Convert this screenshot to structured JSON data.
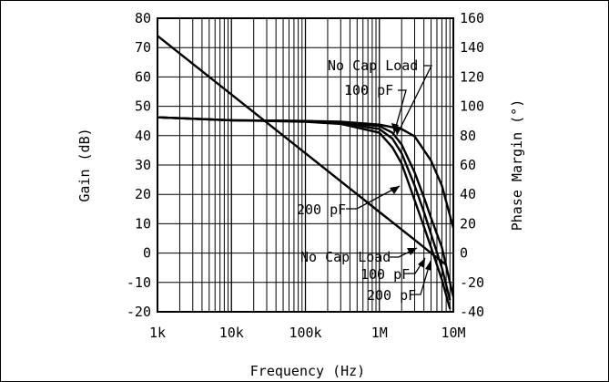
{
  "chart_data": {
    "type": "line",
    "title": "",
    "xlabel": "Frequency (Hz)",
    "ylabel": "Gain (dB)",
    "y2label": "Phase Margin (°)",
    "xscale": "log",
    "xlim": [
      1000,
      10000000
    ],
    "ylim": [
      -20,
      80
    ],
    "y2lim": [
      -40,
      160
    ],
    "grid": true,
    "x_ticks": [
      {
        "value": 1000,
        "label": "1k"
      },
      {
        "value": 10000,
        "label": "10k"
      },
      {
        "value": 100000,
        "label": "100k"
      },
      {
        "value": 1000000,
        "label": "1M"
      },
      {
        "value": 10000000,
        "label": "10M"
      }
    ],
    "y_ticks": [
      "80",
      "70",
      "60",
      "50",
      "40",
      "30",
      "20",
      "10",
      "0",
      "-10",
      "-20"
    ],
    "y2_ticks": [
      "160",
      "140",
      "120",
      "100",
      "80",
      "60",
      "40",
      "20",
      "0",
      "-20",
      "-40"
    ],
    "series": [
      {
        "axis": "left",
        "style": "gain",
        "x": [
          1000,
          10000,
          100000,
          1000000,
          3000000,
          5000000,
          8000000
        ],
        "y": [
          74,
          54,
          34,
          14,
          4.5,
          0,
          -4
        ]
      },
      {
        "axis": "right",
        "style": "phase",
        "x": [
          1000,
          10000,
          100000,
          300000,
          1000000,
          2000000,
          3000000,
          5000000,
          7000000,
          10000000
        ],
        "y": [
          92.5,
          90.5,
          90,
          89.5,
          87.5,
          84.5,
          79.5,
          63,
          46,
          17
        ]
      },
      {
        "axis": "right",
        "style": "phase",
        "x": [
          1000,
          10000,
          100000,
          300000,
          1000000,
          1500000,
          2000000,
          3000000,
          4000000,
          5000000,
          7000000,
          10000000
        ],
        "y": [
          92.5,
          90.5,
          90,
          89,
          86.5,
          82,
          74,
          55,
          38,
          24,
          4,
          -30
        ]
      },
      {
        "axis": "right",
        "style": "phase",
        "x": [
          1000,
          10000,
          100000,
          300000,
          1000000,
          1500000,
          2000000,
          3000000,
          4000000,
          5000000,
          7000000,
          9000000
        ],
        "y": [
          92.5,
          90.5,
          90,
          88.5,
          84.5,
          78,
          68,
          46,
          28,
          13,
          -10,
          -32
        ]
      },
      {
        "axis": "right",
        "style": "phase",
        "x": [
          1000,
          10000,
          100000,
          300000,
          1000000,
          1500000,
          2000000,
          3000000,
          4000000,
          5000000,
          7000000,
          9000000
        ],
        "y": [
          92.5,
          90.5,
          89.5,
          88,
          82,
          72,
          61,
          36,
          18,
          4,
          -18,
          -38
        ]
      }
    ],
    "annotations": {
      "phase_no_cap": "No Cap Load",
      "phase_100": "100 pF",
      "phase_200": "200 pF",
      "gain_no_cap": "No Cap Load",
      "gain_100": "100 pF",
      "gain_200": "200 pF"
    }
  }
}
